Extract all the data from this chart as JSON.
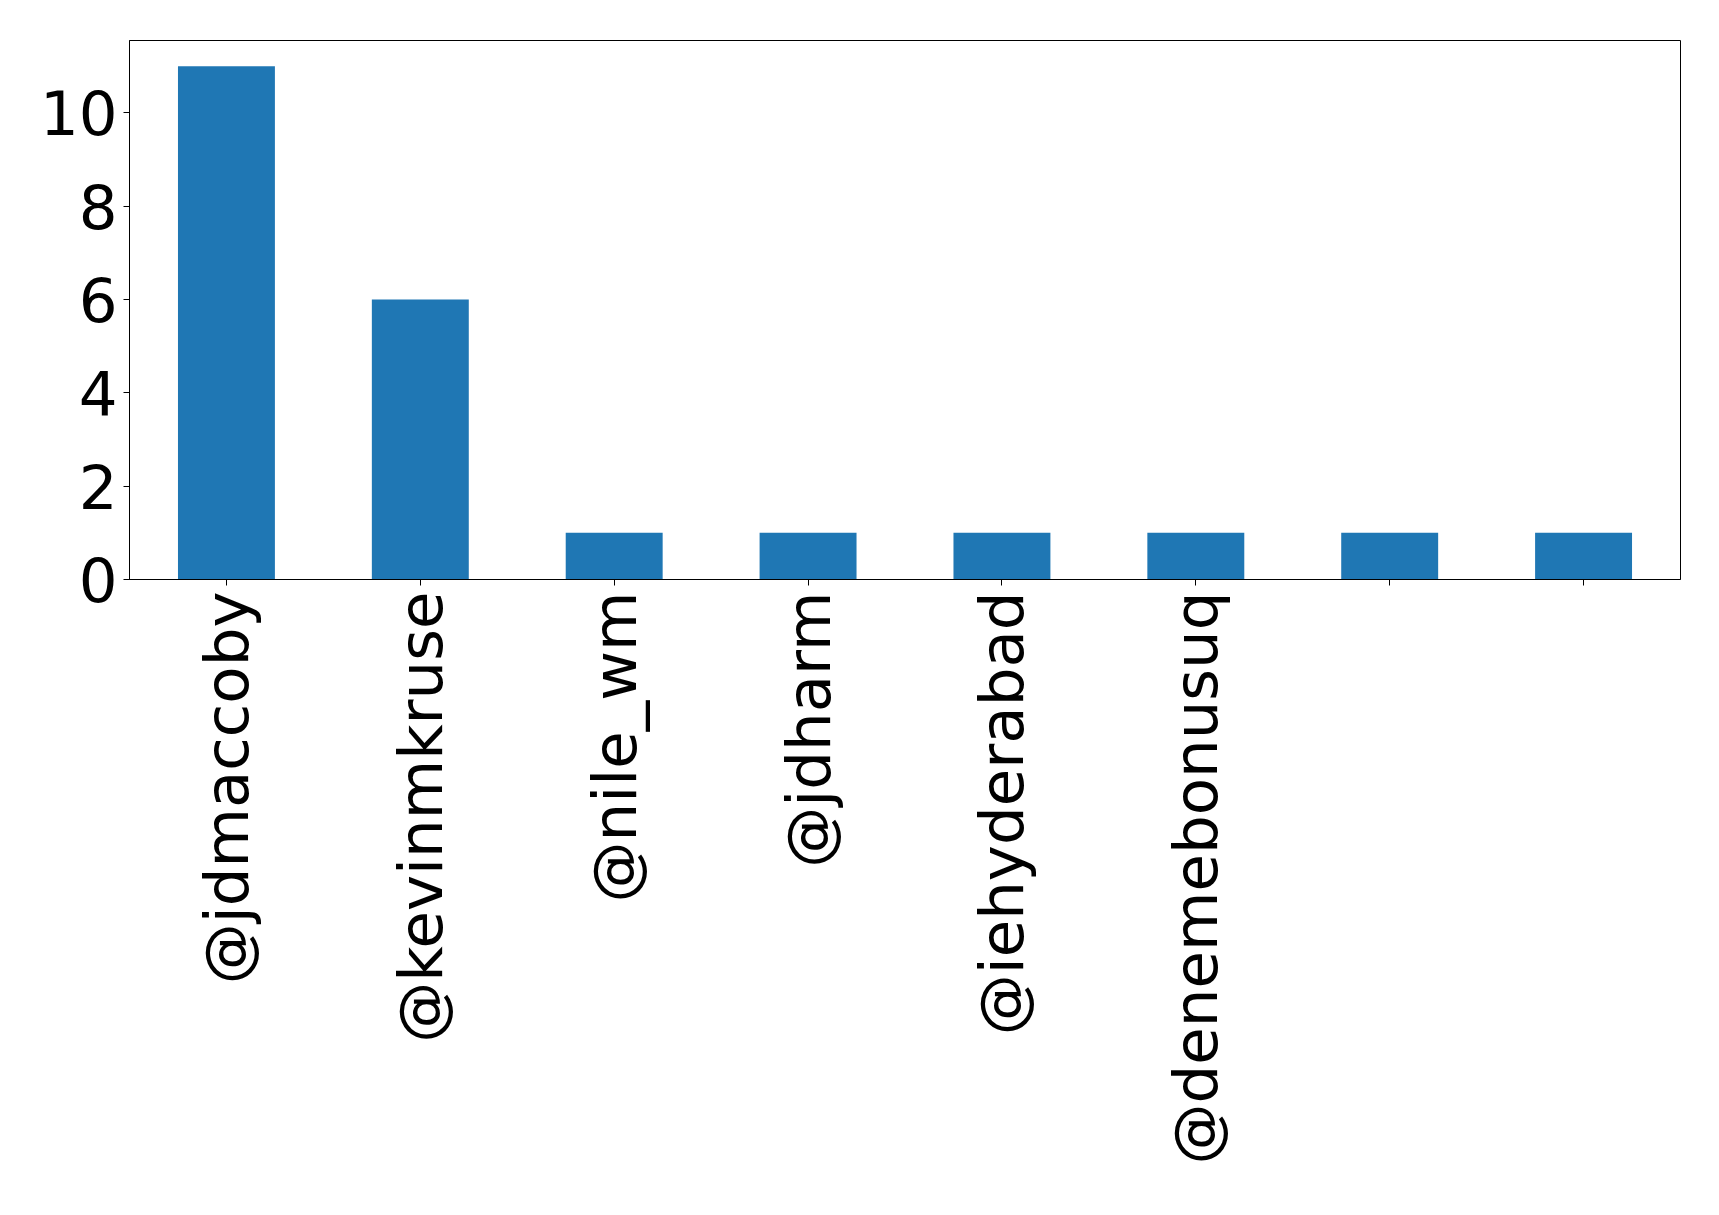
{
  "chart_data": {
    "type": "bar",
    "categories": [
      "@jdmaccoby",
      "@kevinmkruse",
      "@nile_wm",
      "@jdharm",
      "@iehyderabad",
      "@denemebonusuq",
      null,
      null
    ],
    "values": [
      11,
      6,
      1,
      1,
      1,
      1,
      1,
      1
    ],
    "color": "#1f77b4",
    "ylim": [
      0,
      11.55
    ],
    "yticks": [
      0,
      2,
      4,
      6,
      8,
      10
    ]
  }
}
